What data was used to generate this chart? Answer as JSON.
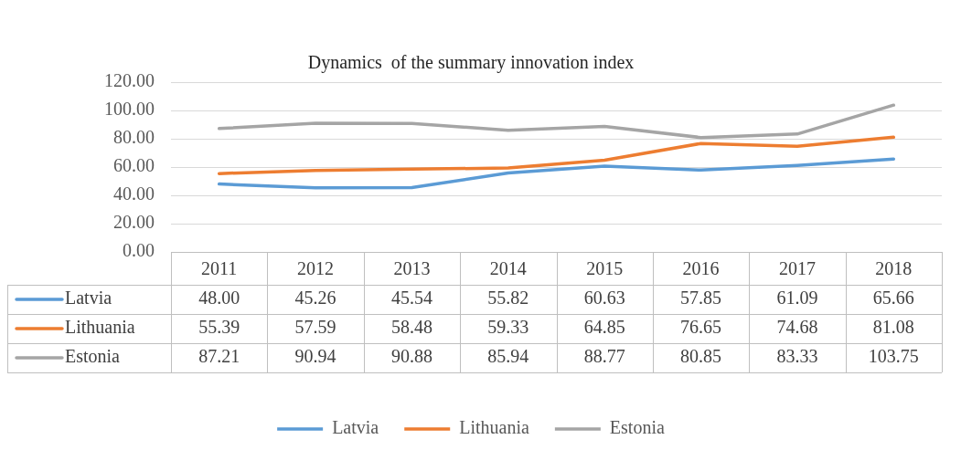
{
  "chart_data": {
    "type": "line",
    "title": "Dynamics  of the summary innovation index",
    "categories": [
      "2011",
      "2012",
      "2013",
      "2014",
      "2015",
      "2016",
      "2017",
      "2018"
    ],
    "series": [
      {
        "name": "Latvia",
        "color": "#5b9bd5",
        "values": [
          48.0,
          45.26,
          45.54,
          55.82,
          60.63,
          57.85,
          61.09,
          65.66
        ],
        "value_labels": [
          "48.00",
          "45.26",
          "45.54",
          "55.82",
          "60.63",
          "57.85",
          "61.09",
          "65.66"
        ]
      },
      {
        "name": "Lithuania",
        "color": "#ed7d31",
        "values": [
          55.39,
          57.59,
          58.48,
          59.33,
          64.85,
          76.65,
          74.68,
          81.08
        ],
        "value_labels": [
          "55.39",
          "57.59",
          "58.48",
          "59.33",
          "64.85",
          "76.65",
          "74.68",
          "81.08"
        ]
      },
      {
        "name": "Estonia",
        "color": "#a5a5a5",
        "values": [
          87.21,
          90.94,
          90.88,
          85.94,
          88.77,
          80.85,
          83.33,
          103.75
        ],
        "value_labels": [
          "87.21",
          "90.94",
          "90.88",
          "85.94",
          "88.77",
          "80.85",
          "83.33",
          "103.75"
        ]
      }
    ],
    "ylim": [
      0,
      120
    ],
    "yticks": [
      {
        "value": 0,
        "label": "0.00"
      },
      {
        "value": 20,
        "label": "20.00"
      },
      {
        "value": 40,
        "label": "40.00"
      },
      {
        "value": 60,
        "label": "60.00"
      },
      {
        "value": 80,
        "label": "80.00"
      },
      {
        "value": 100,
        "label": "100.00"
      },
      {
        "value": 120,
        "label": "120.00"
      }
    ],
    "grid": "y",
    "legend": "bottom"
  }
}
